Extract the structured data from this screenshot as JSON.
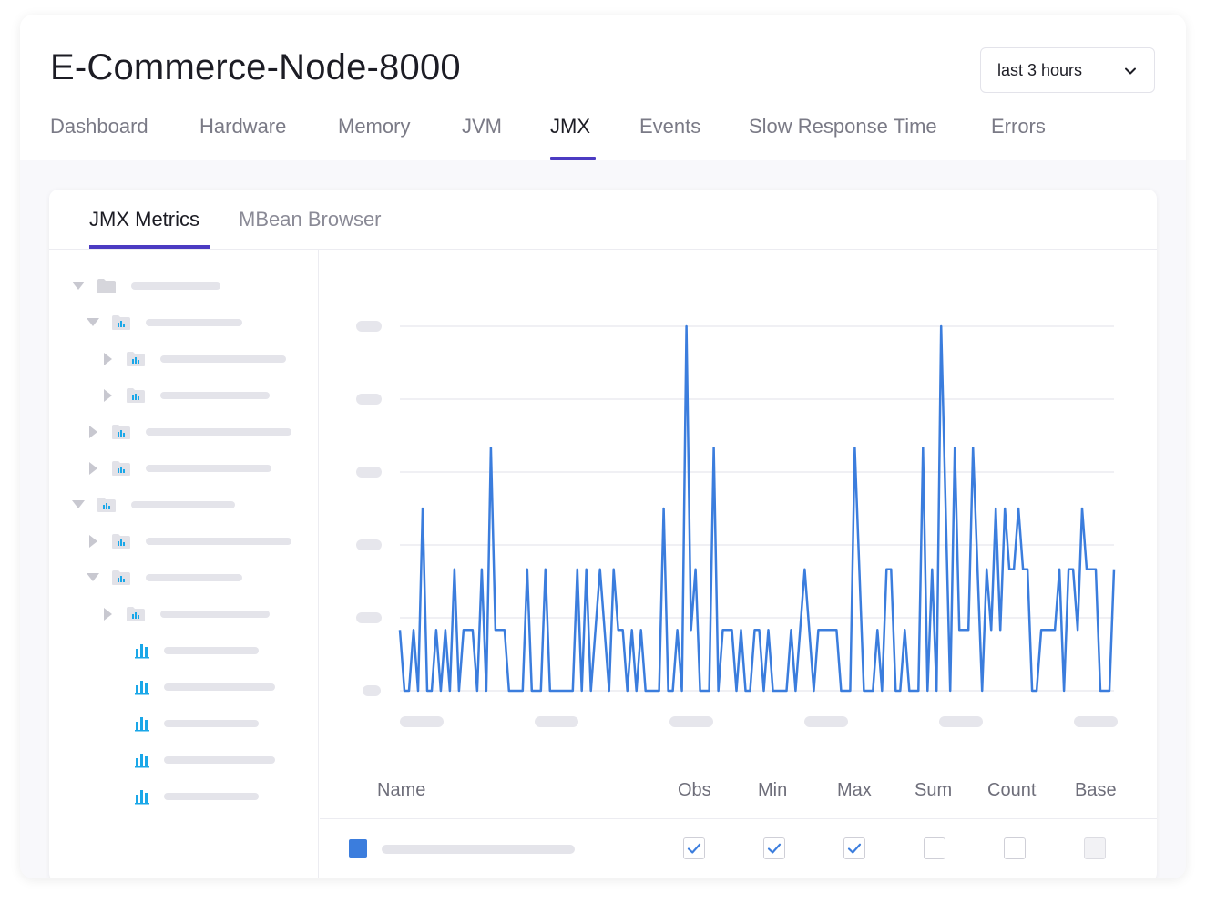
{
  "header": {
    "title": "E-Commerce-Node-8000",
    "time_range": "last 3 hours"
  },
  "tabs": [
    {
      "label": "Dashboard",
      "active": false
    },
    {
      "label": "Hardware",
      "active": false
    },
    {
      "label": "Memory",
      "active": false
    },
    {
      "label": "JVM",
      "active": false
    },
    {
      "label": "JMX",
      "active": true
    },
    {
      "label": "Events",
      "active": false
    },
    {
      "label": "Slow Response Time",
      "active": false
    },
    {
      "label": "Errors",
      "active": false
    }
  ],
  "subtabs": [
    {
      "label": "JMX Metrics",
      "active": true
    },
    {
      "label": "MBean Browser",
      "active": false
    }
  ],
  "tree": {
    "nodes": [
      {
        "depth": 0,
        "kind": "folder",
        "expanded": true
      },
      {
        "depth": 1,
        "kind": "metric-folder",
        "expanded": true
      },
      {
        "depth": 2,
        "kind": "metric-folder",
        "expanded": false
      },
      {
        "depth": 2,
        "kind": "metric-folder",
        "expanded": false
      },
      {
        "depth": 1,
        "kind": "metric-folder",
        "expanded": false
      },
      {
        "depth": 1,
        "kind": "metric-folder",
        "expanded": false
      },
      {
        "depth": 0,
        "kind": "metric-folder",
        "expanded": true
      },
      {
        "depth": 1,
        "kind": "metric-folder",
        "expanded": false
      },
      {
        "depth": 1,
        "kind": "metric-folder",
        "expanded": true
      },
      {
        "depth": 2,
        "kind": "metric-folder",
        "expanded": false
      },
      {
        "depth": 2,
        "kind": "metric",
        "expanded": null
      },
      {
        "depth": 2,
        "kind": "metric",
        "expanded": null
      },
      {
        "depth": 2,
        "kind": "metric",
        "expanded": null
      },
      {
        "depth": 2,
        "kind": "metric",
        "expanded": null
      },
      {
        "depth": 2,
        "kind": "metric",
        "expanded": null
      }
    ]
  },
  "table": {
    "columns": [
      "Name",
      "Obs",
      "Min",
      "Max",
      "Sum",
      "Count",
      "Base"
    ],
    "rows": [
      {
        "series_color": "#3b7ddd",
        "obs": true,
        "min": true,
        "max": true,
        "sum": false,
        "count": false,
        "base": false,
        "base_disabled": true
      }
    ]
  },
  "colors": {
    "accent": "#4b3bc2",
    "series": "#3b7ddd",
    "metric_icon": "#1aa7e8"
  },
  "chart_data": {
    "type": "line",
    "ylim": [
      0,
      6
    ],
    "grid": true,
    "series": [
      {
        "values": [
          1,
          0,
          0,
          1,
          0,
          3,
          0,
          0,
          1,
          0,
          1,
          0,
          2,
          0,
          1,
          1,
          1,
          0,
          2,
          0,
          4,
          1,
          1,
          1,
          0,
          0,
          0,
          0,
          2,
          0,
          0,
          0,
          2,
          0,
          0,
          0,
          0,
          0,
          0,
          2,
          0,
          2,
          0,
          1,
          2,
          1,
          0,
          2,
          1,
          1,
          0,
          1,
          0,
          1,
          0,
          0,
          0,
          0,
          3,
          0,
          0,
          1,
          0,
          6,
          1,
          2,
          0,
          0,
          0,
          4,
          0,
          1,
          1,
          1,
          0,
          1,
          0,
          0,
          1,
          1,
          0,
          1,
          0,
          0,
          0,
          0,
          1,
          0,
          1,
          2,
          1,
          0,
          1,
          1,
          1,
          1,
          1,
          0,
          0,
          0,
          4,
          2,
          0,
          0,
          0,
          1,
          0,
          2,
          2,
          0,
          0,
          1,
          0,
          0,
          0,
          4,
          0,
          2,
          0,
          6,
          3,
          0,
          4,
          1,
          1,
          1,
          4,
          2,
          0,
          2,
          1,
          3,
          1,
          3,
          2,
          2,
          3,
          2,
          2,
          0,
          0,
          1,
          1,
          1,
          1,
          2,
          0,
          2,
          2,
          1,
          3,
          2,
          2,
          2,
          0,
          0,
          0,
          2
        ]
      }
    ]
  }
}
